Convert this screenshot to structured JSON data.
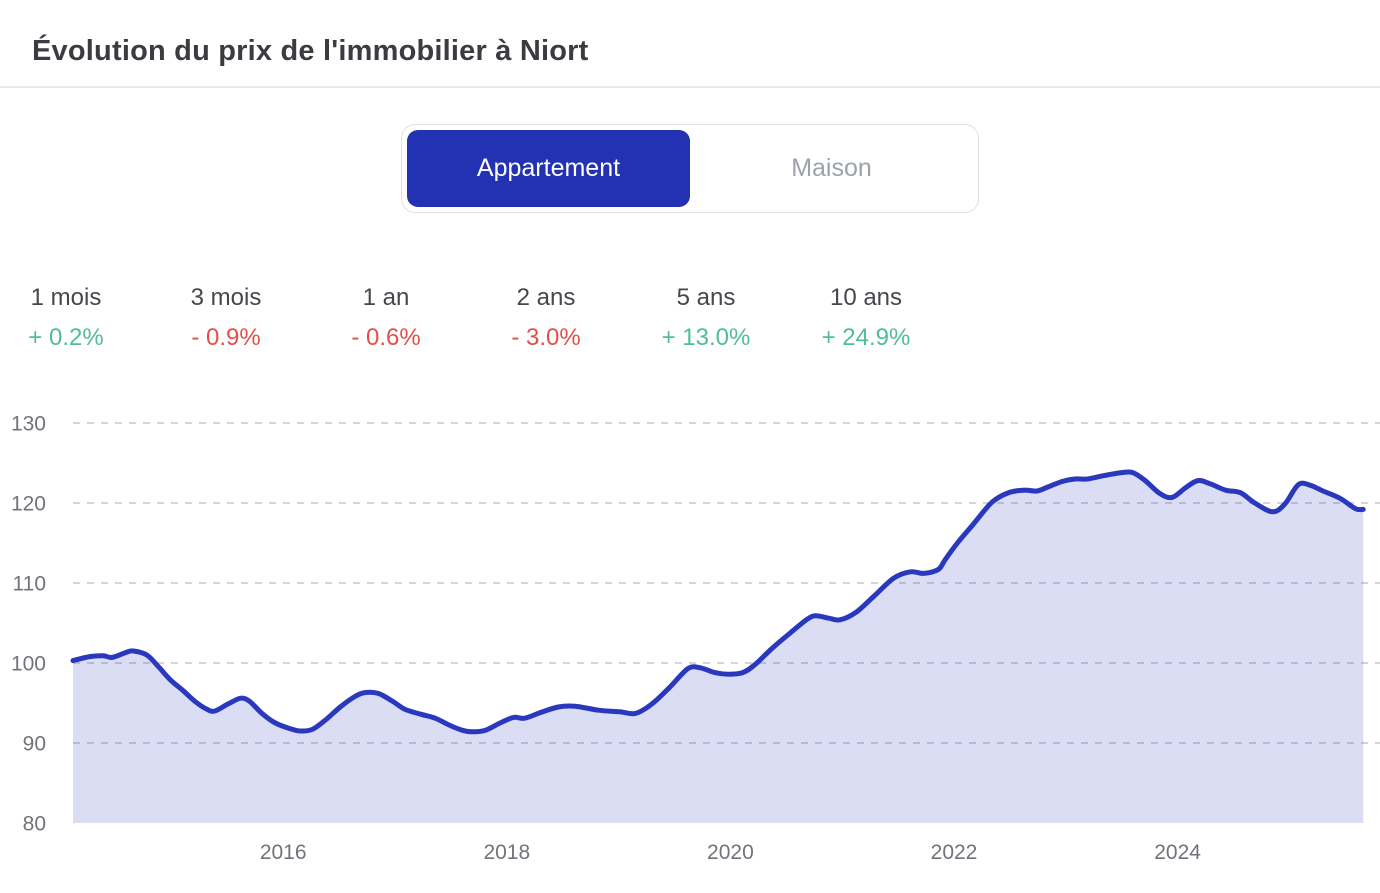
{
  "header": {
    "title": "Évolution du prix de l'immobilier à Niort"
  },
  "toggle": {
    "options": [
      {
        "label": "Appartement",
        "active": true
      },
      {
        "label": "Maison",
        "active": false
      }
    ]
  },
  "stats": [
    {
      "label": "1 mois",
      "value": "+ 0.2%",
      "trend": "up"
    },
    {
      "label": "3 mois",
      "value": "- 0.9%",
      "trend": "down"
    },
    {
      "label": "1 an",
      "value": "- 0.6%",
      "trend": "down"
    },
    {
      "label": "2 ans",
      "value": "- 3.0%",
      "trend": "down"
    },
    {
      "label": "5 ans",
      "value": "+ 13.0%",
      "trend": "up"
    },
    {
      "label": "10 ans",
      "value": "+ 24.9%",
      "trend": "up"
    }
  ],
  "colors": {
    "accent_blue": "#2232b3",
    "line_blue": "#2a38be",
    "area_fill": "rgba(43,56,190,0.17)",
    "positive_green": "#4fbe95",
    "negative_red": "#e25048",
    "grid": "#d3d5db",
    "axis_text": "#70747a"
  },
  "chart_data": {
    "type": "area",
    "title": "Évolution du prix de l'immobilier à Niort — Appartement (indice de prix)",
    "xlabel": "",
    "ylabel": "",
    "x_ticks": [
      2016,
      2018,
      2020,
      2022,
      2024
    ],
    "y_ticks": [
      80,
      90,
      100,
      110,
      120,
      130
    ],
    "xlim": [
      2014.12,
      2025.81
    ],
    "ylim": [
      80,
      130
    ],
    "grid": "dashed-horizontal",
    "legend": "none",
    "series": [
      {
        "name": "Appartement",
        "points": [
          [
            2014.12,
            100.3
          ],
          [
            2014.27,
            100.8
          ],
          [
            2014.39,
            100.9
          ],
          [
            2014.47,
            100.7
          ],
          [
            2014.59,
            101.3
          ],
          [
            2014.66,
            101.5
          ],
          [
            2014.78,
            101.0
          ],
          [
            2014.88,
            99.6
          ],
          [
            2014.99,
            97.9
          ],
          [
            2015.1,
            96.6
          ],
          [
            2015.22,
            95.1
          ],
          [
            2015.32,
            94.2
          ],
          [
            2015.39,
            94.0
          ],
          [
            2015.51,
            94.9
          ],
          [
            2015.62,
            95.6
          ],
          [
            2015.7,
            95.2
          ],
          [
            2015.81,
            93.7
          ],
          [
            2015.93,
            92.5
          ],
          [
            2016.06,
            91.8
          ],
          [
            2016.15,
            91.5
          ],
          [
            2016.26,
            91.7
          ],
          [
            2016.38,
            92.9
          ],
          [
            2016.51,
            94.5
          ],
          [
            2016.64,
            95.8
          ],
          [
            2016.73,
            96.3
          ],
          [
            2016.85,
            96.2
          ],
          [
            2016.98,
            95.2
          ],
          [
            2017.09,
            94.2
          ],
          [
            2017.23,
            93.6
          ],
          [
            2017.36,
            93.1
          ],
          [
            2017.49,
            92.2
          ],
          [
            2017.6,
            91.6
          ],
          [
            2017.69,
            91.4
          ],
          [
            2017.81,
            91.6
          ],
          [
            2017.94,
            92.5
          ],
          [
            2018.06,
            93.2
          ],
          [
            2018.16,
            93.1
          ],
          [
            2018.3,
            93.8
          ],
          [
            2018.46,
            94.5
          ],
          [
            2018.61,
            94.6
          ],
          [
            2018.82,
            94.1
          ],
          [
            2019.01,
            93.9
          ],
          [
            2019.15,
            93.7
          ],
          [
            2019.3,
            94.9
          ],
          [
            2019.46,
            97.0
          ],
          [
            2019.62,
            99.3
          ],
          [
            2019.73,
            99.4
          ],
          [
            2019.86,
            98.8
          ],
          [
            2019.98,
            98.6
          ],
          [
            2020.11,
            98.8
          ],
          [
            2020.22,
            99.8
          ],
          [
            2020.37,
            101.8
          ],
          [
            2020.53,
            103.7
          ],
          [
            2020.68,
            105.4
          ],
          [
            2020.76,
            105.9
          ],
          [
            2020.88,
            105.6
          ],
          [
            2020.98,
            105.4
          ],
          [
            2021.12,
            106.3
          ],
          [
            2021.28,
            108.3
          ],
          [
            2021.46,
            110.6
          ],
          [
            2021.61,
            111.4
          ],
          [
            2021.73,
            111.2
          ],
          [
            2021.86,
            111.7
          ],
          [
            2021.92,
            112.9
          ],
          [
            2022.03,
            115.0
          ],
          [
            2022.17,
            117.3
          ],
          [
            2022.34,
            120.1
          ],
          [
            2022.49,
            121.3
          ],
          [
            2022.63,
            121.6
          ],
          [
            2022.74,
            121.5
          ],
          [
            2022.84,
            122.0
          ],
          [
            2022.97,
            122.7
          ],
          [
            2023.08,
            123.0
          ],
          [
            2023.19,
            123.0
          ],
          [
            2023.33,
            123.4
          ],
          [
            2023.5,
            123.8
          ],
          [
            2023.6,
            123.8
          ],
          [
            2023.71,
            122.8
          ],
          [
            2023.84,
            121.2
          ],
          [
            2023.95,
            120.7
          ],
          [
            2024.07,
            121.9
          ],
          [
            2024.18,
            122.8
          ],
          [
            2024.29,
            122.4
          ],
          [
            2024.43,
            121.6
          ],
          [
            2024.56,
            121.3
          ],
          [
            2024.69,
            120.0
          ],
          [
            2024.85,
            118.9
          ],
          [
            2024.96,
            119.9
          ],
          [
            2025.08,
            122.3
          ],
          [
            2025.19,
            122.2
          ],
          [
            2025.3,
            121.5
          ],
          [
            2025.45,
            120.6
          ],
          [
            2025.59,
            119.3
          ],
          [
            2025.66,
            119.2
          ]
        ]
      }
    ]
  }
}
